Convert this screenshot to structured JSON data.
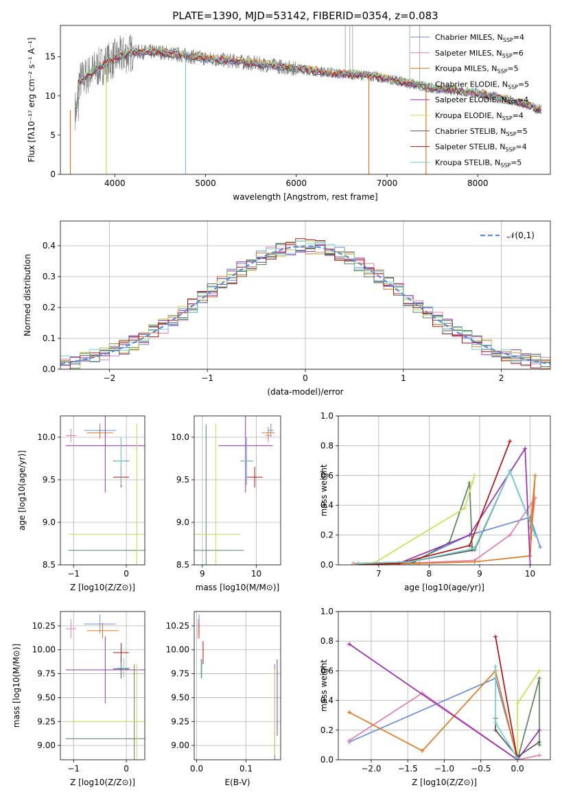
{
  "colors": {
    "chabrier_miles": "#6a8bd8",
    "salpeter_miles": "#e07eb0",
    "kroupa_miles": "#e07820",
    "chabrier_elodie": "#5a8060",
    "salpeter_elodie": "#9a2fb0",
    "kroupa_elodie": "#c8e050",
    "chabrier_stelib": "#555555",
    "salpeter_stelib": "#b01010",
    "kroupa_stelib": "#70d0d0",
    "normal": "#5a8ad8",
    "observed": "#808080"
  },
  "chart_data": [
    {
      "id": "spectrum",
      "type": "line",
      "title": "PLATE=1390, MJD=53142, FIBERID=0354, z=0.083",
      "xlabel": "wavelength [Angstrom, rest frame]",
      "ylabel": "Flux [fλ10⁻¹⁷ erg cm⁻² s⁻¹ A⁻¹]",
      "xlim": [
        3400,
        8800
      ],
      "ylim": [
        0,
        19
      ],
      "xticks": [
        4000,
        5000,
        6000,
        7000,
        8000
      ],
      "yticks": [
        0,
        5,
        10,
        15
      ],
      "legend_position": "top-right",
      "legend": [
        {
          "label": "Chabrier MILES, N",
          "sub": "SSP",
          "suffix": "=4",
          "color_key": "chabrier_miles"
        },
        {
          "label": "Salpeter MILES, N",
          "sub": "SSP",
          "suffix": "=6",
          "color_key": "salpeter_miles"
        },
        {
          "label": "Kroupa MILES, N",
          "sub": "SSP",
          "suffix": "=5",
          "color_key": "kroupa_miles"
        },
        {
          "label": "Chabrier ELODIE, N",
          "sub": "SSP",
          "suffix": "=5",
          "color_key": "chabrier_elodie"
        },
        {
          "label": "Salpeter ELODIE, N",
          "sub": "SSP",
          "suffix": "=4",
          "color_key": "salpeter_elodie"
        },
        {
          "label": "Kroupa ELODIE, N",
          "sub": "SSP",
          "suffix": "=4",
          "color_key": "kroupa_elodie"
        },
        {
          "label": "Chabrier STELIB, N",
          "sub": "SSP",
          "suffix": "=5",
          "color_key": "chabrier_stelib"
        },
        {
          "label": "Salpeter STELIB, N",
          "sub": "SSP",
          "suffix": "=4",
          "color_key": "salpeter_stelib"
        },
        {
          "label": "Kroupa STELIB, N",
          "sub": "SSP",
          "suffix": "=5",
          "color_key": "kroupa_stelib"
        }
      ],
      "continuum": [
        [
          3600,
          11.8
        ],
        [
          3800,
          13.5
        ],
        [
          4000,
          14.8
        ],
        [
          4200,
          15.6
        ],
        [
          4500,
          15.6
        ],
        [
          5000,
          14.8
        ],
        [
          5500,
          14.2
        ],
        [
          6000,
          13.5
        ],
        [
          6500,
          12.8
        ],
        [
          6800,
          12.6
        ],
        [
          7000,
          12.2
        ],
        [
          7500,
          11.0
        ],
        [
          8000,
          10.4
        ],
        [
          8500,
          9.0
        ],
        [
          8700,
          8.2
        ]
      ],
      "dips": [
        {
          "x": 3510,
          "y": 0,
          "color_key": "kroupa_miles"
        },
        {
          "x": 3905,
          "y": 0,
          "color_key": "kroupa_elodie"
        },
        {
          "x": 4780,
          "y": 0,
          "color_key": "kroupa_stelib"
        },
        {
          "x": 6800,
          "y": 0,
          "color_key": "kroupa_miles"
        },
        {
          "x": 7430,
          "y": 0,
          "color_key": "kroupa_miles"
        }
      ]
    },
    {
      "id": "residuals",
      "type": "line",
      "xlabel": "(data-model)/error",
      "ylabel": "Normed distribution",
      "xlim": [
        -2.5,
        2.5
      ],
      "ylim": [
        0,
        0.48
      ],
      "xticks": [
        -2,
        -1,
        0,
        1,
        2
      ],
      "yticks": [
        0.0,
        0.1,
        0.2,
        0.3,
        0.4
      ],
      "legend_position": "top-right",
      "legend_label": "𝒩(0,1)",
      "normal_curve": {
        "mean": 0,
        "sigma": 1
      }
    },
    {
      "id": "age-vs-Z",
      "type": "scatter",
      "xlabel": "Z [log10(Z/Z⊙)]",
      "ylabel": "age  [log10(age/yr)]",
      "xlim": [
        -1.25,
        0.35
      ],
      "ylim": [
        8.5,
        10.25
      ],
      "xticks": [
        -1,
        0
      ],
      "yticks": [
        8.5,
        9.0,
        9.5,
        10.0
      ],
      "points": [
        {
          "x": -0.5,
          "y": 10.08,
          "xerr": 0.3,
          "yerr": 0.08,
          "color_key": "chabrier_miles"
        },
        {
          "x": -1.05,
          "y": 10.02,
          "xerr": 0.1,
          "yerr": 0.08,
          "color_key": "salpeter_miles"
        },
        {
          "x": -0.5,
          "y": 10.05,
          "xerr": 0.25,
          "yerr": 0.07,
          "color_key": "kroupa_miles"
        },
        {
          "x": 0.2,
          "y": 8.67,
          "xerr": 1.3,
          "yerr": 1.48,
          "color_key": "chabrier_elodie"
        },
        {
          "x": -0.4,
          "y": 9.9,
          "xerr": 0.75,
          "yerr": 0.55,
          "color_key": "salpeter_elodie"
        },
        {
          "x": 0.2,
          "y": 8.86,
          "xerr": 1.3,
          "yerr": 1.3,
          "color_key": "kroupa_elodie"
        },
        {
          "x": -0.1,
          "y": 9.72,
          "xerr": 0.15,
          "yerr": 0.28,
          "color_key": "chabrier_stelib"
        },
        {
          "x": -0.1,
          "y": 9.53,
          "xerr": 0.15,
          "yerr": 0.12,
          "color_key": "salpeter_stelib"
        },
        {
          "x": -0.1,
          "y": 9.72,
          "xerr": 0.12,
          "yerr": 0.28,
          "color_key": "kroupa_stelib"
        }
      ]
    },
    {
      "id": "age-vs-mass",
      "type": "scatter",
      "xlabel": "mass [log10(M/M⊙)]",
      "xlim": [
        8.85,
        10.45
      ],
      "ylim": [
        8.5,
        10.25
      ],
      "xticks": [
        9,
        10
      ],
      "yticks": [
        8.5,
        9.0,
        9.5,
        10.0
      ],
      "points": [
        {
          "x": 10.27,
          "y": 10.08,
          "xerr": 0.05,
          "yerr": 0.08,
          "color_key": "chabrier_miles"
        },
        {
          "x": 10.22,
          "y": 10.02,
          "xerr": 0.05,
          "yerr": 0.08,
          "color_key": "salpeter_miles"
        },
        {
          "x": 10.22,
          "y": 10.05,
          "xerr": 0.12,
          "yerr": 0.07,
          "color_key": "kroupa_miles"
        },
        {
          "x": 9.07,
          "y": 8.67,
          "xerr": 0.7,
          "yerr": 1.48,
          "color_key": "chabrier_elodie"
        },
        {
          "x": 9.8,
          "y": 9.9,
          "xerr": 0.5,
          "yerr": 0.55,
          "color_key": "salpeter_elodie"
        },
        {
          "x": 9.25,
          "y": 8.86,
          "xerr": 0.45,
          "yerr": 1.3,
          "color_key": "kroupa_elodie"
        },
        {
          "x": 9.82,
          "y": 9.72,
          "xerr": 0.12,
          "yerr": 0.28,
          "color_key": "chabrier_stelib"
        },
        {
          "x": 9.97,
          "y": 9.53,
          "xerr": 0.15,
          "yerr": 0.12,
          "color_key": "salpeter_stelib"
        },
        {
          "x": 9.82,
          "y": 9.72,
          "xerr": 0.12,
          "yerr": 0.28,
          "color_key": "kroupa_stelib"
        }
      ]
    },
    {
      "id": "weight-vs-age",
      "type": "line",
      "xlabel": "age  [log10(age/yr)]",
      "ylabel": "mass weight",
      "xlim": [
        6.2,
        10.4
      ],
      "ylim": [
        0,
        1.0
      ],
      "xticks": [
        7,
        8,
        9,
        10
      ],
      "yticks": [
        0.0,
        0.2,
        0.4,
        0.6,
        0.8,
        1.0
      ],
      "series": [
        {
          "color_key": "chabrier_miles",
          "x": [
            6.5,
            7.6,
            8.8,
            10.0,
            10.2
          ],
          "y": [
            0.01,
            0.01,
            0.2,
            0.32,
            0.12
          ]
        },
        {
          "color_key": "salpeter_miles",
          "x": [
            6.5,
            7.5,
            8.9,
            9.6,
            10.1,
            10.0
          ],
          "y": [
            0.01,
            0.01,
            0.03,
            0.2,
            0.45,
            0.18
          ]
        },
        {
          "color_key": "kroupa_miles",
          "x": [
            6.5,
            7.8,
            8.9,
            10.0,
            10.1,
            10.0
          ],
          "y": [
            0.0,
            0.01,
            0.02,
            0.06,
            0.6,
            0.25
          ]
        },
        {
          "color_key": "chabrier_elodie",
          "x": [
            6.6,
            7.7,
            8.4,
            8.8,
            8.85,
            8.85
          ],
          "y": [
            0.01,
            0.02,
            0.15,
            0.55,
            0.12,
            0.1
          ]
        },
        {
          "color_key": "salpeter_elodie",
          "x": [
            6.6,
            7.4,
            8.8,
            9.9,
            10.0
          ],
          "y": [
            0.01,
            0.01,
            0.2,
            0.78,
            0.0
          ]
        },
        {
          "color_key": "kroupa_elodie",
          "x": [
            6.5,
            6.9,
            8.7,
            8.9,
            8.85
          ],
          "y": [
            0.0,
            0.01,
            0.38,
            0.6,
            0.55
          ]
        },
        {
          "color_key": "chabrier_stelib",
          "x": [
            6.6,
            7.6,
            8.9,
            9.6,
            10.1
          ],
          "y": [
            0.01,
            0.02,
            0.1,
            0.63,
            0.2
          ]
        },
        {
          "color_key": "salpeter_stelib",
          "x": [
            6.6,
            7.4,
            8.8,
            9.6
          ],
          "y": [
            0.0,
            0.01,
            0.13,
            0.83
          ]
        },
        {
          "color_key": "kroupa_stelib",
          "x": [
            6.6,
            7.6,
            8.9,
            9.6,
            10.1
          ],
          "y": [
            0.01,
            0.02,
            0.11,
            0.63,
            0.2
          ]
        }
      ]
    },
    {
      "id": "mass-vs-Z",
      "type": "scatter",
      "xlabel": "Z [log10(Z/Z⊙)]",
      "ylabel": "mass [log10(M/M⊙)]",
      "xlim": [
        -1.25,
        0.35
      ],
      "ylim": [
        8.85,
        10.4
      ],
      "xticks": [
        -1,
        0
      ],
      "yticks": [
        9.0,
        9.25,
        9.5,
        9.75,
        10.0,
        10.25
      ],
      "points": [
        {
          "x": -0.5,
          "y": 10.27,
          "xerr": 0.3,
          "yerr": 0.1,
          "color_key": "chabrier_miles"
        },
        {
          "x": -1.05,
          "y": 10.22,
          "xerr": 0.1,
          "yerr": 0.1,
          "color_key": "salpeter_miles"
        },
        {
          "x": -0.45,
          "y": 10.2,
          "xerr": 0.3,
          "yerr": 0.08,
          "color_key": "kroupa_miles"
        },
        {
          "x": 0.15,
          "y": 9.07,
          "xerr": 1.3,
          "yerr": 0.78,
          "color_key": "chabrier_elodie"
        },
        {
          "x": -0.4,
          "y": 9.79,
          "xerr": 0.75,
          "yerr": 0.35,
          "color_key": "salpeter_elodie"
        },
        {
          "x": 0.2,
          "y": 9.25,
          "xerr": 1.3,
          "yerr": 0.6,
          "color_key": "kroupa_elodie"
        },
        {
          "x": -0.1,
          "y": 9.8,
          "xerr": 0.15,
          "yerr": 0.1,
          "color_key": "chabrier_stelib"
        },
        {
          "x": -0.1,
          "y": 9.97,
          "xerr": 0.15,
          "yerr": 0.1,
          "color_key": "salpeter_stelib"
        },
        {
          "x": -0.05,
          "y": 9.81,
          "xerr": 0.12,
          "yerr": 0.1,
          "color_key": "kroupa_stelib"
        }
      ]
    },
    {
      "id": "mass-vs-ebv",
      "type": "scatter",
      "xlabel": "E(B-V)",
      "xlim": [
        -0.005,
        0.17
      ],
      "ylim": [
        8.85,
        10.4
      ],
      "xticks": [
        0.0,
        0.1
      ],
      "yticks": [
        9.0,
        9.25,
        9.5,
        9.75,
        10.0,
        10.25
      ],
      "points": [
        {
          "x": 0.005,
          "y": 10.27,
          "xerr": 0.0,
          "yerr": 0.1,
          "color_key": "chabrier_miles"
        },
        {
          "x": 0.003,
          "y": 10.22,
          "xerr": 0.0,
          "yerr": 0.1,
          "color_key": "salpeter_miles"
        },
        {
          "x": 0.005,
          "y": 10.2,
          "xerr": 0.0,
          "yerr": 0.08,
          "color_key": "kroupa_miles"
        },
        {
          "x": 0.158,
          "y": 9.07,
          "xerr": 0.0,
          "yerr": 0.78,
          "color_key": "chabrier_elodie"
        },
        {
          "x": 0.163,
          "y": 9.5,
          "xerr": 0.0,
          "yerr": 0.4,
          "color_key": "salpeter_elodie"
        },
        {
          "x": 0.158,
          "y": 9.35,
          "xerr": 0.0,
          "yerr": 0.45,
          "color_key": "kroupa_elodie"
        },
        {
          "x": 0.01,
          "y": 9.8,
          "xerr": 0.0,
          "yerr": 0.1,
          "color_key": "chabrier_stelib"
        },
        {
          "x": 0.013,
          "y": 9.97,
          "xerr": 0.0,
          "yerr": 0.12,
          "color_key": "salpeter_stelib"
        },
        {
          "x": 0.009,
          "y": 9.81,
          "xerr": 0.0,
          "yerr": 0.1,
          "color_key": "kroupa_stelib"
        }
      ]
    },
    {
      "id": "weight-vs-Z",
      "type": "line",
      "xlabel": "Z [log10(Z/Z⊙)]",
      "ylabel": "mass weight",
      "xlim": [
        -2.45,
        0.45
      ],
      "ylim": [
        0,
        1.0
      ],
      "xticks": [
        -2.0,
        -1.5,
        -1.0,
        -0.5,
        0.0
      ],
      "yticks": [
        0.0,
        0.2,
        0.4,
        0.6,
        0.8,
        1.0
      ],
      "series": [
        {
          "color_key": "chabrier_miles",
          "x": [
            -2.3,
            -0.3,
            0.0
          ],
          "y": [
            0.12,
            0.55,
            0.01
          ]
        },
        {
          "color_key": "salpeter_miles",
          "x": [
            -2.3,
            -1.3,
            0.0,
            0.3
          ],
          "y": [
            0.13,
            0.45,
            0.0,
            0.03
          ]
        },
        {
          "color_key": "kroupa_miles",
          "x": [
            -2.3,
            -1.3,
            -0.3,
            0.0
          ],
          "y": [
            0.32,
            0.06,
            0.6,
            0.0
          ]
        },
        {
          "color_key": "chabrier_elodie",
          "x": [
            0.0,
            0.0,
            0.3,
            0.3
          ],
          "y": [
            0.02,
            0.0,
            0.55,
            0.1
          ]
        },
        {
          "color_key": "salpeter_elodie",
          "x": [
            -2.3,
            0.0,
            0.3
          ],
          "y": [
            0.78,
            0.0,
            0.2
          ]
        },
        {
          "color_key": "kroupa_elodie",
          "x": [
            0.3,
            0.0,
            0.0
          ],
          "y": [
            0.6,
            0.38,
            0.0
          ]
        },
        {
          "color_key": "chabrier_stelib",
          "x": [
            -0.3,
            -0.3,
            0.0,
            0.3
          ],
          "y": [
            0.28,
            0.2,
            0.02,
            0.12
          ]
        },
        {
          "color_key": "salpeter_stelib",
          "x": [
            -0.3,
            0.0
          ],
          "y": [
            0.83,
            0.0
          ]
        },
        {
          "color_key": "kroupa_stelib",
          "x": [
            -0.3,
            -0.3,
            0.0
          ],
          "y": [
            0.63,
            0.25,
            0.01
          ]
        }
      ]
    }
  ]
}
